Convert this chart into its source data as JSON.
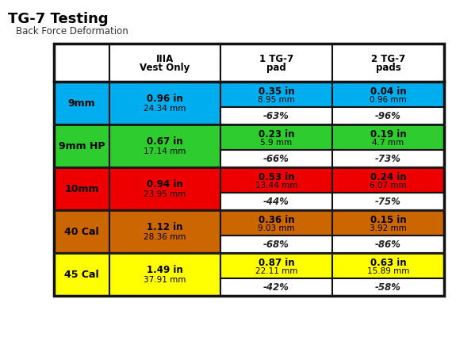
{
  "title": "TG-7 Testing",
  "subtitle": "Back Force Deformation",
  "col_headers": [
    [
      "IIIA",
      "Vest Only"
    ],
    [
      "1 TG-7",
      "pad"
    ],
    [
      "2 TG-7",
      "pads"
    ]
  ],
  "rows": [
    {
      "label": "9mm",
      "color": "#00AEEF",
      "vest_line1": "0.96 in",
      "vest_line2": "24.34 mm",
      "pad1_line1": "0.35 in",
      "pad1_line2": "8.95 mm",
      "pad1_pct": "-63%",
      "pad2_line1": "0.04 in",
      "pad2_line2": "0.96 mm",
      "pad2_pct": "-96%"
    },
    {
      "label": "9mm HP",
      "color": "#2ECC2E",
      "vest_line1": "0.67 in",
      "vest_line2": "17.14 mm",
      "pad1_line1": "0.23 in",
      "pad1_line2": "5.9 mm",
      "pad1_pct": "-66%",
      "pad2_line1": "0.19 in",
      "pad2_line2": "4.7 mm",
      "pad2_pct": "-73%"
    },
    {
      "label": "10mm",
      "color": "#EE0000",
      "vest_line1": "0.94 in",
      "vest_line2": "23.95 mm",
      "pad1_line1": "0.53 in",
      "pad1_line2": "13.44 mm",
      "pad1_pct": "-44%",
      "pad2_line1": "0.24 in",
      "pad2_line2": "6.07 mm",
      "pad2_pct": "-75%"
    },
    {
      "label": "40 Cal",
      "color": "#CC6600",
      "vest_line1": "1.12 in",
      "vest_line2": "28.36 mm",
      "pad1_line1": "0.36 in",
      "pad1_line2": "9.03 mm",
      "pad1_pct": "-68%",
      "pad2_line1": "0.15 in",
      "pad2_line2": "3.92 mm",
      "pad2_pct": "-86%"
    },
    {
      "label": "45 Cal",
      "color": "#FFFF00",
      "vest_line1": "1.49 in",
      "vest_line2": "37.91 mm",
      "pad1_line1": "0.87 in",
      "pad1_line2": "22.11 mm",
      "pad1_pct": "-42%",
      "pad2_line1": "0.63 in",
      "pad2_line2": "15.89 mm",
      "pad2_pct": "-58%"
    }
  ],
  "border_color": "#111111",
  "fig_width": 5.75,
  "fig_height": 4.3,
  "dpi": 100
}
